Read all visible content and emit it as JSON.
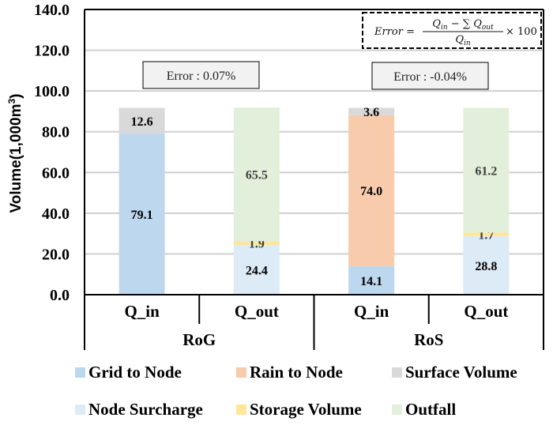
{
  "chart_data": {
    "type": "bar",
    "stacked": true,
    "title": "",
    "xlabel": "",
    "ylabel": "Volume(1,000m³)",
    "ylabel_base": "Volume(1,000m",
    "ylabel_sup": "3",
    "ylabel_close": ")",
    "ylim": [
      0,
      140
    ],
    "yticks": [
      "0.0",
      "20.0",
      "40.0",
      "60.0",
      "80.0",
      "100.0",
      "120.0",
      "140.0"
    ],
    "ytick_values": [
      0,
      20,
      40,
      60,
      80,
      100,
      120,
      140
    ],
    "grid": true,
    "categories": [
      "Q_in",
      "Q_out",
      "Q_in",
      "Q_out"
    ],
    "groups": [
      {
        "name": "RoG",
        "categories": [
          "Q_in",
          "Q_out"
        ]
      },
      {
        "name": "RoS",
        "categories": [
          "Q_in",
          "Q_out"
        ]
      }
    ],
    "series": [
      {
        "name": "Grid to Node",
        "color": "#BDD7EE",
        "label_color": "#000000",
        "values": [
          79.1,
          null,
          14.1,
          null
        ]
      },
      {
        "name": "Rain to Node",
        "color": "#F8CBAD",
        "label_color": "#000000",
        "values": [
          null,
          null,
          74.0,
          null
        ]
      },
      {
        "name": "Surface Volume",
        "color": "#D9D9D9",
        "label_color": "#000000",
        "values": [
          12.6,
          null,
          3.6,
          null
        ]
      },
      {
        "name": "Node Surcharge",
        "color": "#DDEBF7",
        "label_color": "#000000",
        "values": [
          null,
          24.4,
          null,
          28.8
        ]
      },
      {
        "name": "Storage Volume",
        "color": "#FFE699",
        "label_color": "#404040",
        "values": [
          null,
          1.9,
          null,
          1.7
        ]
      },
      {
        "name": "Outfall",
        "color": "#E2EFDA",
        "label_color": "#404040",
        "values": [
          null,
          65.5,
          null,
          61.2
        ]
      }
    ],
    "stack_order": [
      [
        "Grid to Node",
        "Surface Volume"
      ],
      [
        "Node Surcharge",
        "Storage Volume",
        "Outfall"
      ],
      [
        "Grid to Node",
        "Rain to Node",
        "Surface Volume"
      ],
      [
        "Node Surcharge",
        "Storage Volume",
        "Outfall"
      ]
    ],
    "annotations": [
      {
        "text": "Error : 0.07%",
        "group": "RoG"
      },
      {
        "text": "Error : -0.04%",
        "group": "RoS"
      }
    ],
    "formula": {
      "lhs": "Error =",
      "numerator": "Q_in − ∑ Q_out",
      "denominator": "Q_in",
      "multiplier": "× 100"
    },
    "legend": {
      "placement": "bottom",
      "items": [
        "Grid to Node",
        "Rain to Node",
        "Surface Volume",
        "Node Surcharge",
        "Storage Volume",
        "Outfall"
      ]
    }
  }
}
